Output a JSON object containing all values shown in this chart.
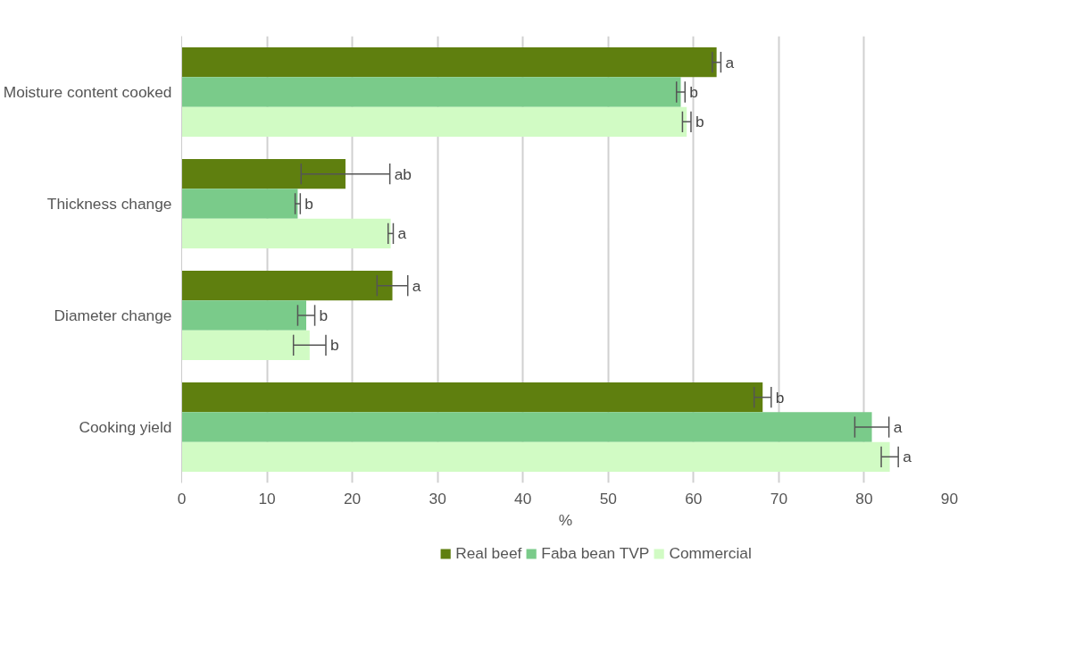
{
  "chart_data": {
    "type": "bar",
    "orientation": "horizontal",
    "xlabel": "%",
    "categories": [
      "Moisture content cooked",
      "Thickness change",
      "Diameter change",
      "Cooking yield"
    ],
    "series": [
      {
        "name": "Real beef",
        "color": "#5f7f0f",
        "values": [
          62.7,
          19.2,
          24.7,
          68.1
        ],
        "errors": [
          0.5,
          5.2,
          1.8,
          1.0
        ],
        "value_labels": [
          "a",
          "ab",
          "a",
          "b"
        ]
      },
      {
        "name": "Faba bean TVP",
        "color": "#7acb8a",
        "values": [
          58.5,
          13.6,
          14.6,
          80.9
        ],
        "errors": [
          0.5,
          0.3,
          1.0,
          2.0
        ],
        "value_labels": [
          "b",
          "b",
          "b",
          "a"
        ]
      },
      {
        "name": "Commercial",
        "color": "#d1fbc4",
        "values": [
          59.2,
          24.5,
          15.0,
          83.0
        ],
        "errors": [
          0.5,
          0.3,
          1.9,
          1.0
        ],
        "value_labels": [
          "b",
          "a",
          "b",
          "a"
        ]
      }
    ],
    "xlim": [
      0,
      90
    ],
    "xticks": [
      0,
      10,
      20,
      30,
      40,
      50,
      60,
      70,
      80,
      90
    ],
    "grid": "x",
    "legend": "bottom"
  }
}
